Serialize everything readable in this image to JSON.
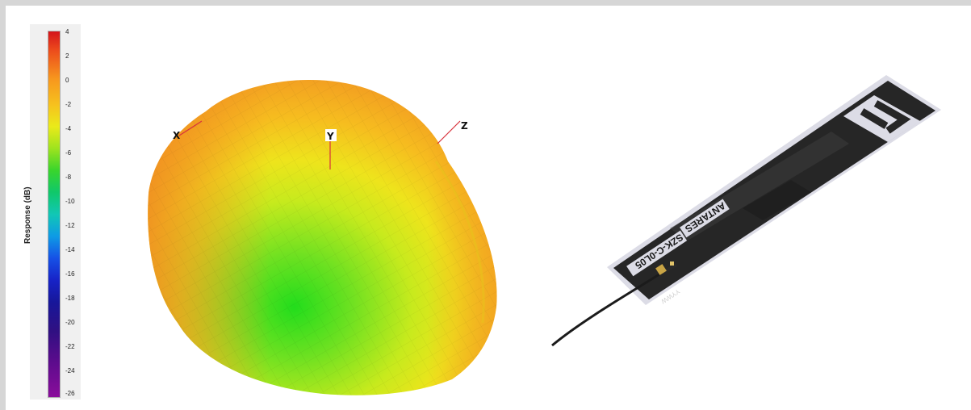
{
  "scale": {
    "title": "Response (dB)",
    "ticks": [
      "4",
      "2",
      "0",
      "-2",
      "-4",
      "-6",
      "-8",
      "-10",
      "-12",
      "-14",
      "-16",
      "-18",
      "-20",
      "-22",
      "-24",
      "-26"
    ]
  },
  "axes": {
    "x": "X",
    "y": "Y",
    "z": "Z"
  },
  "antenna": {
    "brand": "ANTARES",
    "part": "SZK-C-0L05",
    "date_code": "YYWW"
  },
  "colors": {
    "axis_line": "#d8323c",
    "board": "#242424",
    "silkscreen": "#d9d9e4",
    "cable": "#1b1b1b",
    "connector": "#c8a445"
  }
}
